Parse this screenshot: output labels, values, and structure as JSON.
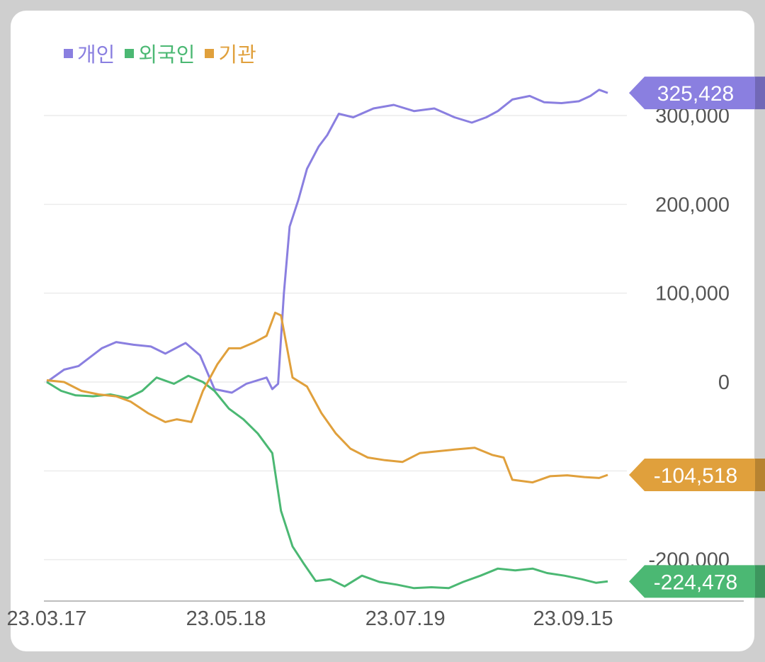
{
  "chart_data": {
    "type": "line",
    "y_ticks": [
      {
        "value": 300000,
        "label": "300,000"
      },
      {
        "value": 200000,
        "label": "200,000"
      },
      {
        "value": 100000,
        "label": "100,000"
      },
      {
        "value": 0,
        "label": "0"
      },
      {
        "value": -100000,
        "label": ""
      },
      {
        "value": -200000,
        "label": "-200,000"
      }
    ],
    "x_ticks": [
      {
        "date": "2023-03-17",
        "label": "23.03.17"
      },
      {
        "date": "2023-05-18",
        "label": "23.05.18"
      },
      {
        "date": "2023-07-19",
        "label": "23.07.19"
      },
      {
        "date": "2023-09-15",
        "label": "23.09.15"
      }
    ],
    "ylim": [
      -235000,
      340000
    ],
    "xlim": [
      "2023-03-17",
      "2023-09-27"
    ],
    "grid": true,
    "legend_position": "top-left",
    "series": [
      {
        "name": "개인",
        "color": "#8a7fe0",
        "last_label": "325,428",
        "points": [
          [
            "2023-03-17",
            0
          ],
          [
            "2023-03-23",
            14000
          ],
          [
            "2023-03-28",
            18000
          ],
          [
            "2023-04-05",
            38000
          ],
          [
            "2023-04-10",
            45000
          ],
          [
            "2023-04-16",
            42000
          ],
          [
            "2023-04-22",
            40000
          ],
          [
            "2023-04-27",
            32000
          ],
          [
            "2023-05-04",
            44000
          ],
          [
            "2023-05-09",
            30000
          ],
          [
            "2023-05-14",
            -8000
          ],
          [
            "2023-05-20",
            -12000
          ],
          [
            "2023-05-25",
            -2000
          ],
          [
            "2023-06-01",
            5000
          ],
          [
            "2023-06-03",
            -8000
          ],
          [
            "2023-06-05",
            -2000
          ],
          [
            "2023-06-07",
            100000
          ],
          [
            "2023-06-09",
            175000
          ],
          [
            "2023-06-12",
            205000
          ],
          [
            "2023-06-15",
            240000
          ],
          [
            "2023-06-19",
            265000
          ],
          [
            "2023-06-22",
            278000
          ],
          [
            "2023-06-26",
            302000
          ],
          [
            "2023-07-01",
            298000
          ],
          [
            "2023-07-08",
            308000
          ],
          [
            "2023-07-15",
            312000
          ],
          [
            "2023-07-22",
            305000
          ],
          [
            "2023-07-29",
            308000
          ],
          [
            "2023-08-05",
            298000
          ],
          [
            "2023-08-11",
            292000
          ],
          [
            "2023-08-16",
            298000
          ],
          [
            "2023-08-20",
            305000
          ],
          [
            "2023-08-25",
            318000
          ],
          [
            "2023-08-31",
            322000
          ],
          [
            "2023-09-05",
            315000
          ],
          [
            "2023-09-11",
            314000
          ],
          [
            "2023-09-17",
            316000
          ],
          [
            "2023-09-21",
            322000
          ],
          [
            "2023-09-24",
            329000
          ],
          [
            "2023-09-27",
            325428
          ]
        ]
      },
      {
        "name": "외국인",
        "color": "#4bb873",
        "last_label": "-224,478",
        "points": [
          [
            "2023-03-17",
            0
          ],
          [
            "2023-03-22",
            -10000
          ],
          [
            "2023-03-27",
            -15000
          ],
          [
            "2023-04-02",
            -16000
          ],
          [
            "2023-04-08",
            -14000
          ],
          [
            "2023-04-14",
            -18000
          ],
          [
            "2023-04-19",
            -10000
          ],
          [
            "2023-04-24",
            5000
          ],
          [
            "2023-04-30",
            -2000
          ],
          [
            "2023-05-05",
            7000
          ],
          [
            "2023-05-10",
            0
          ],
          [
            "2023-05-14",
            -10000
          ],
          [
            "2023-05-19",
            -30000
          ],
          [
            "2023-05-24",
            -42000
          ],
          [
            "2023-05-29",
            -58000
          ],
          [
            "2023-06-03",
            -80000
          ],
          [
            "2023-06-06",
            -145000
          ],
          [
            "2023-06-10",
            -185000
          ],
          [
            "2023-06-14",
            -205000
          ],
          [
            "2023-06-18",
            -224000
          ],
          [
            "2023-06-23",
            -222000
          ],
          [
            "2023-06-28",
            -230000
          ],
          [
            "2023-07-04",
            -218000
          ],
          [
            "2023-07-10",
            -225000
          ],
          [
            "2023-07-16",
            -228000
          ],
          [
            "2023-07-22",
            -232000
          ],
          [
            "2023-07-28",
            -231000
          ],
          [
            "2023-08-03",
            -232000
          ],
          [
            "2023-08-08",
            -225000
          ],
          [
            "2023-08-14",
            -218000
          ],
          [
            "2023-08-20",
            -210000
          ],
          [
            "2023-08-26",
            -212000
          ],
          [
            "2023-09-01",
            -210000
          ],
          [
            "2023-09-06",
            -215000
          ],
          [
            "2023-09-12",
            -218000
          ],
          [
            "2023-09-18",
            -222000
          ],
          [
            "2023-09-23",
            -226000
          ],
          [
            "2023-09-27",
            -224478
          ]
        ]
      },
      {
        "name": "기관",
        "color": "#e0a03c",
        "last_label": "-104,518",
        "points": [
          [
            "2023-03-17",
            2000
          ],
          [
            "2023-03-23",
            0
          ],
          [
            "2023-03-29",
            -10000
          ],
          [
            "2023-04-04",
            -14000
          ],
          [
            "2023-04-10",
            -16000
          ],
          [
            "2023-04-15",
            -22000
          ],
          [
            "2023-04-21",
            -35000
          ],
          [
            "2023-04-27",
            -45000
          ],
          [
            "2023-05-01",
            -42000
          ],
          [
            "2023-05-06",
            -45000
          ],
          [
            "2023-05-10",
            -10000
          ],
          [
            "2023-05-15",
            20000
          ],
          [
            "2023-05-19",
            38000
          ],
          [
            "2023-05-23",
            38000
          ],
          [
            "2023-05-28",
            45000
          ],
          [
            "2023-06-01",
            52000
          ],
          [
            "2023-06-04",
            78000
          ],
          [
            "2023-06-06",
            75000
          ],
          [
            "2023-06-10",
            5000
          ],
          [
            "2023-06-15",
            -5000
          ],
          [
            "2023-06-20",
            -35000
          ],
          [
            "2023-06-25",
            -58000
          ],
          [
            "2023-06-30",
            -75000
          ],
          [
            "2023-07-06",
            -85000
          ],
          [
            "2023-07-12",
            -88000
          ],
          [
            "2023-07-18",
            -90000
          ],
          [
            "2023-07-24",
            -80000
          ],
          [
            "2023-07-30",
            -78000
          ],
          [
            "2023-08-05",
            -76000
          ],
          [
            "2023-08-12",
            -74000
          ],
          [
            "2023-08-18",
            -82000
          ],
          [
            "2023-08-22",
            -85000
          ],
          [
            "2023-08-25",
            -110000
          ],
          [
            "2023-09-01",
            -113000
          ],
          [
            "2023-09-07",
            -106000
          ],
          [
            "2023-09-13",
            -105000
          ],
          [
            "2023-09-19",
            -107000
          ],
          [
            "2023-09-24",
            -108000
          ],
          [
            "2023-09-27",
            -104518
          ]
        ]
      }
    ]
  }
}
